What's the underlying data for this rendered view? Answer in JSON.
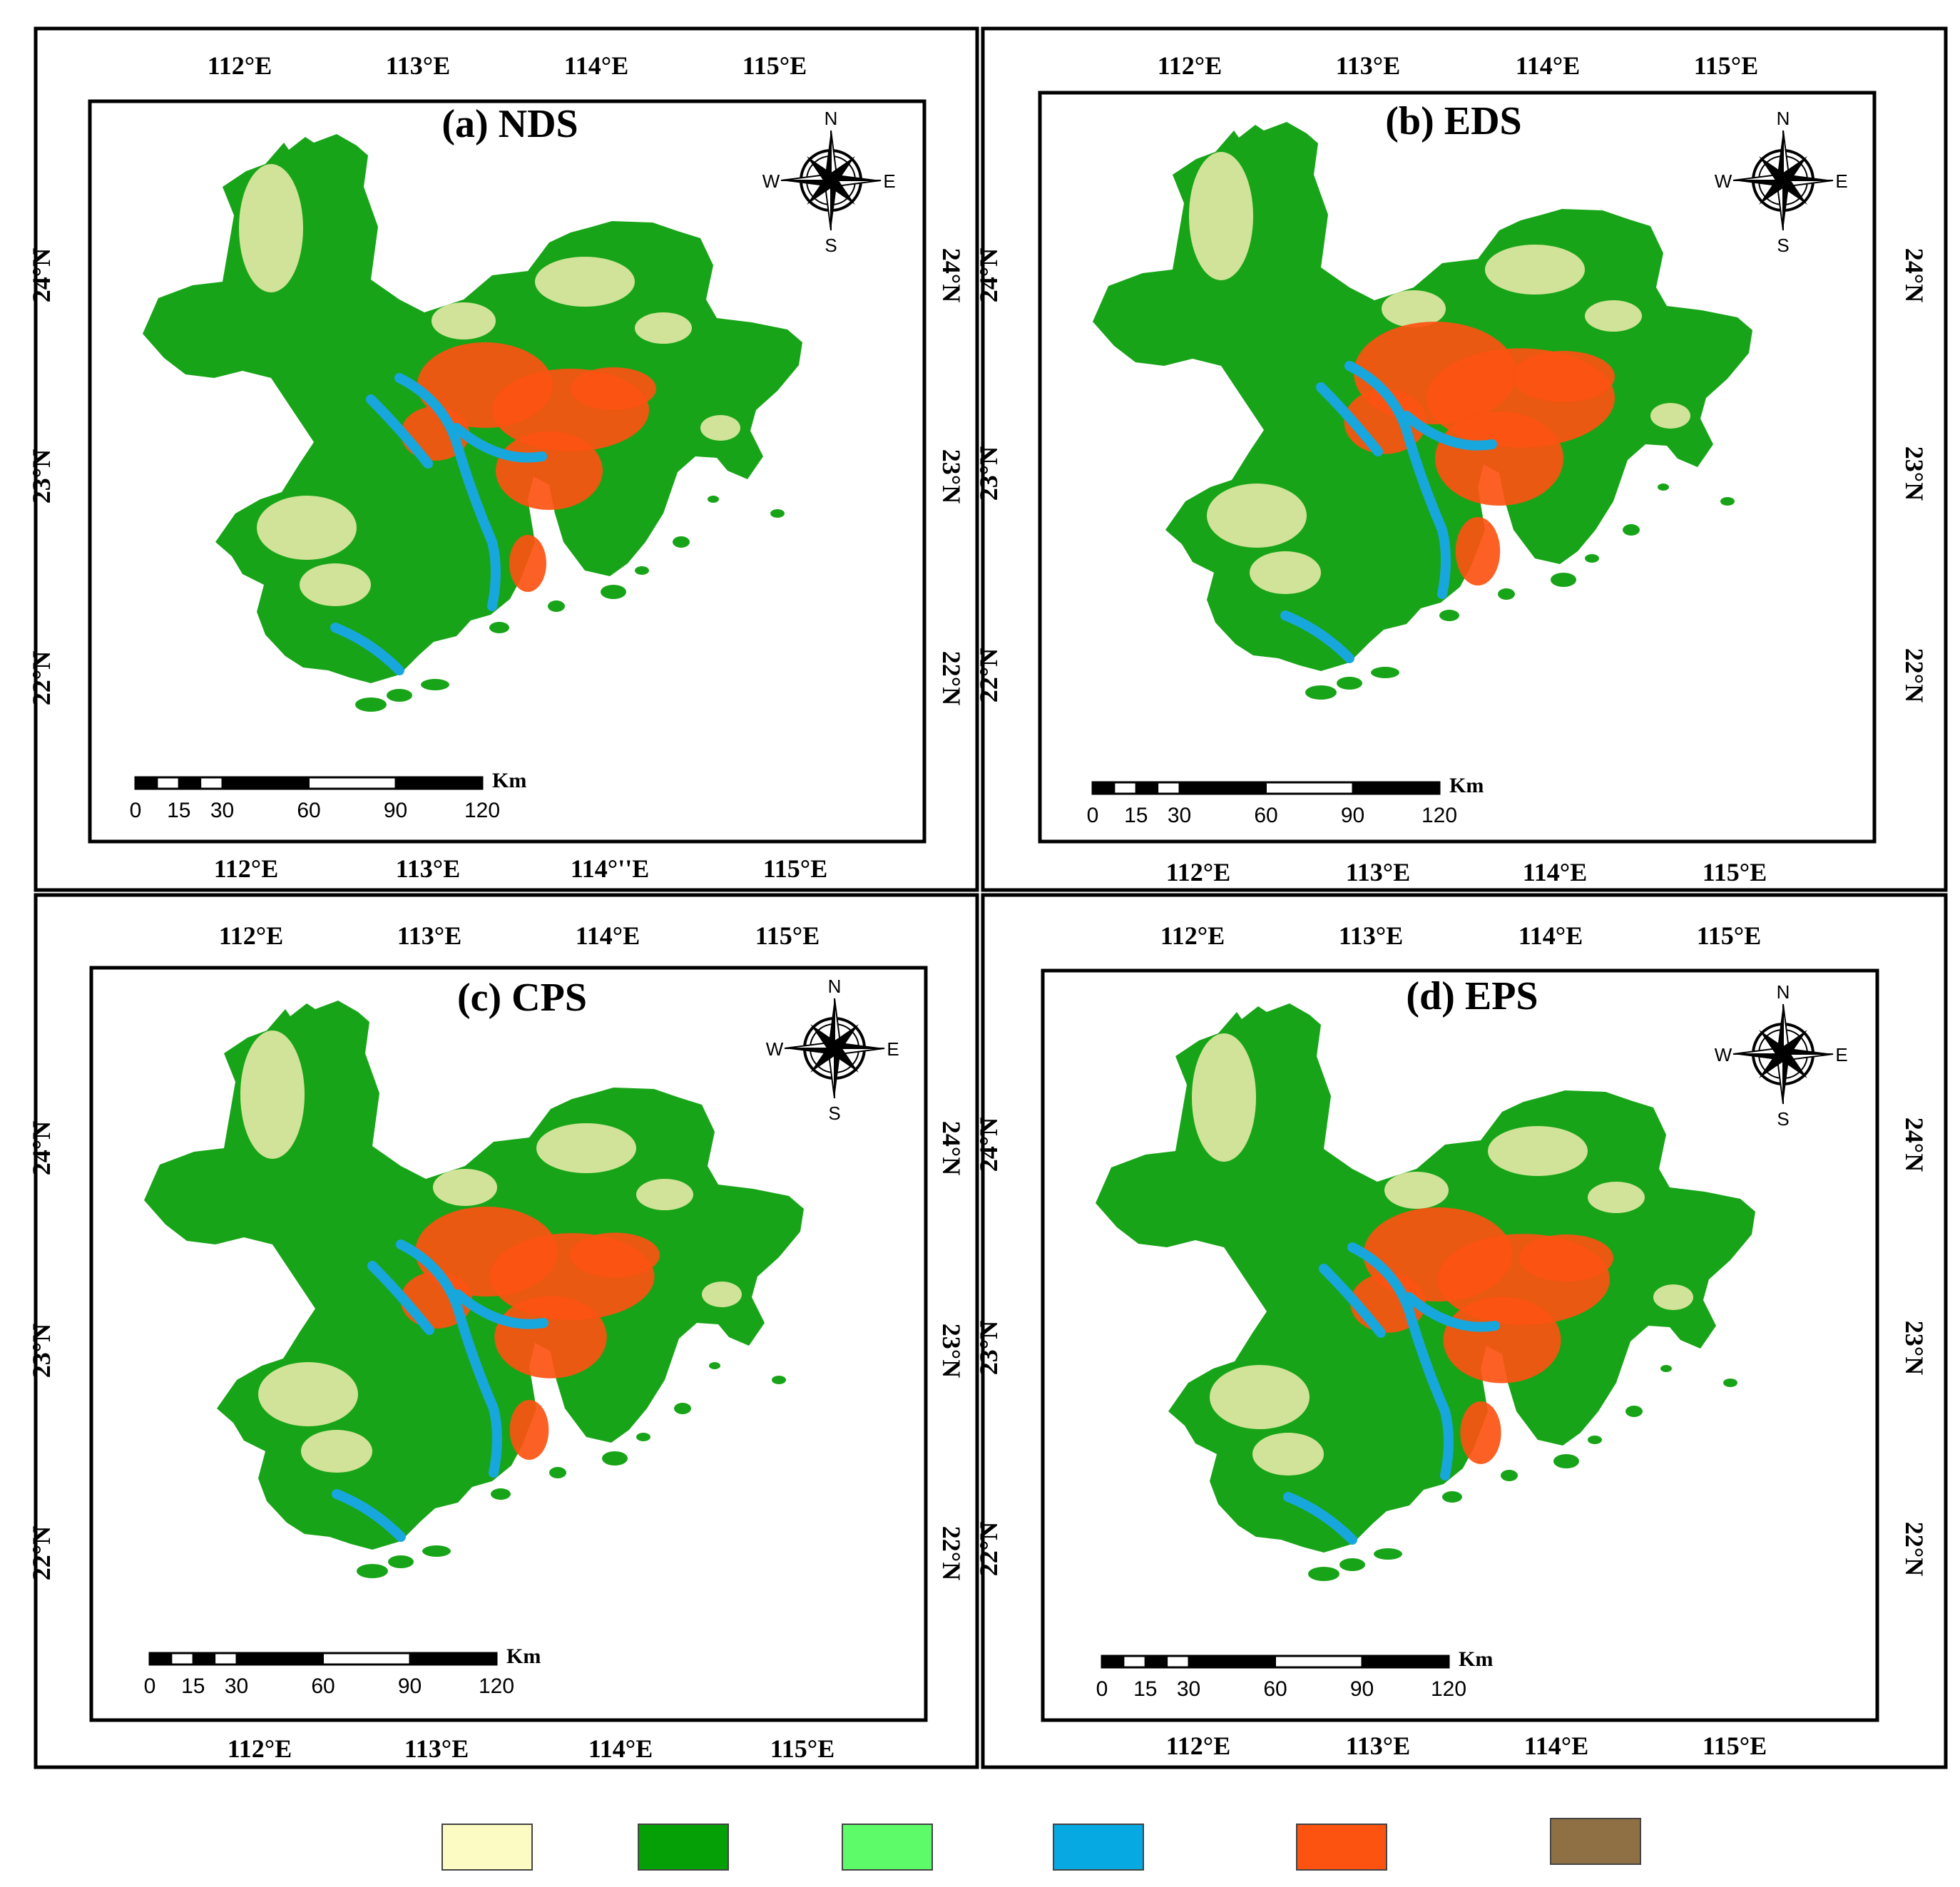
{
  "panels": [
    {
      "title": "(a) NDS",
      "top_labels": [
        "112°E",
        "113°E",
        "114°E",
        "115°E"
      ],
      "bottom_labels": [
        "112°E",
        "113°E",
        "114°''E",
        "115°E"
      ],
      "lat_labels": [
        "24°N",
        "23°N",
        "22°N"
      ],
      "scale_labels": [
        "0",
        "15",
        "30",
        "60",
        "90",
        "120"
      ],
      "scale_unit": "Km",
      "compass": {
        "n": "N",
        "s": "S",
        "e": "E",
        "w": "W"
      }
    },
    {
      "title": "(b) EDS",
      "top_labels": [
        "112°E",
        "113°E",
        "114°E",
        "115°E"
      ],
      "bottom_labels": [
        "112°E",
        "113°E",
        "114°E",
        "115°E"
      ],
      "lat_labels": [
        "24°N",
        "23°N",
        "22°N"
      ],
      "scale_labels": [
        "0",
        "15",
        "30",
        "60",
        "90",
        "120"
      ],
      "scale_unit": "Km",
      "compass": {
        "n": "N",
        "s": "S",
        "e": "E",
        "w": "W"
      }
    },
    {
      "title": "(c) CPS",
      "top_labels": [
        "112°E",
        "113°E",
        "114°E",
        "115°E"
      ],
      "bottom_labels": [
        "112°E",
        "113°E",
        "114°E",
        "115°E"
      ],
      "lat_labels": [
        "24°N",
        "23°N",
        "22°N"
      ],
      "scale_labels": [
        "0",
        "15",
        "30",
        "60",
        "90",
        "120"
      ],
      "scale_unit": "Km",
      "compass": {
        "n": "N",
        "s": "S",
        "e": "E",
        "w": "W"
      }
    },
    {
      "title": "(d) EPS",
      "top_labels": [
        "112°E",
        "113°E",
        "114°E",
        "115°E"
      ],
      "bottom_labels": [
        "112°E",
        "113°E",
        "114°E",
        "115°E"
      ],
      "lat_labels": [
        "24°N",
        "23°N",
        "22°N"
      ],
      "scale_labels": [
        "0",
        "15",
        "30",
        "60",
        "90",
        "120"
      ],
      "scale_unit": "Km",
      "compass": {
        "n": "N",
        "s": "S",
        "e": "E",
        "w": "W"
      }
    }
  ],
  "legend_colors": [
    "#fdfbc4",
    "#05a005",
    "#5dfb6a",
    "#07a9e3",
    "#fc5311",
    "#8e7044"
  ],
  "map_colors": {
    "forest": "#18a418",
    "crop": "#f2eeb0",
    "urban": "#fc5311",
    "water": "#18a7dc"
  },
  "urban_extent": [
    1.0,
    1.2,
    1.05,
    1.1
  ]
}
